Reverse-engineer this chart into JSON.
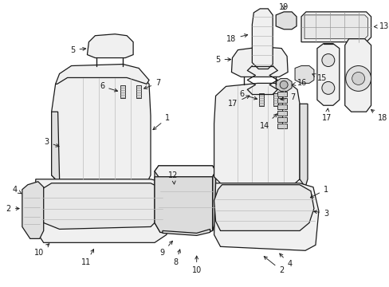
{
  "bg_color": "#ffffff",
  "line_color": "#1a1a1a",
  "fill_light": "#f0f0f0",
  "fill_mid": "#e0e0e0",
  "fill_dark": "#c8c8c8",
  "figsize": [
    4.89,
    3.6
  ],
  "dpi": 100,
  "fs": 7.0
}
